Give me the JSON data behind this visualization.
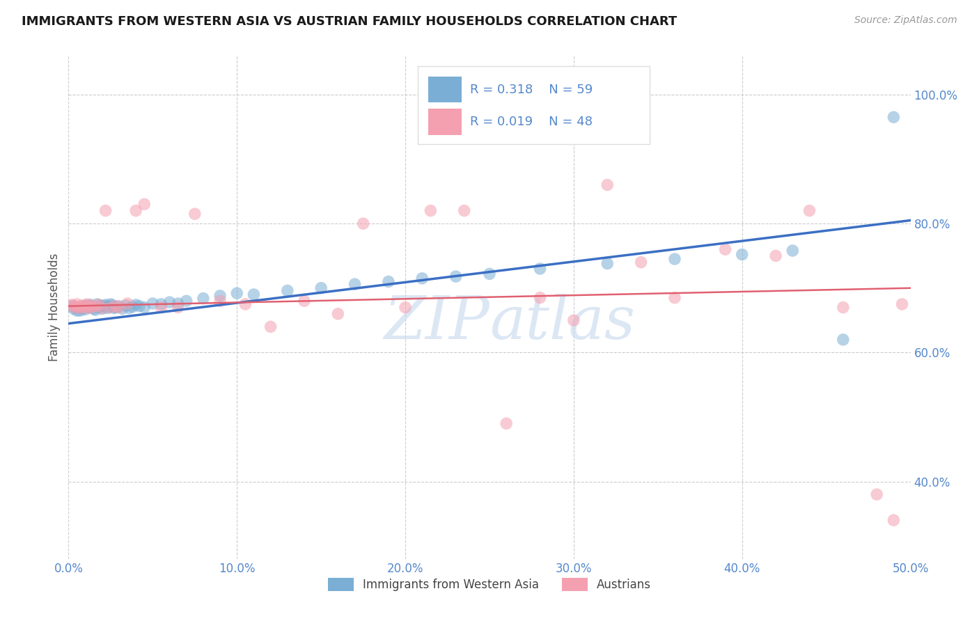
{
  "title": "IMMIGRANTS FROM WESTERN ASIA VS AUSTRIAN FAMILY HOUSEHOLDS CORRELATION CHART",
  "source_text": "Source: ZipAtlas.com",
  "ylabel": "Family Households",
  "xlim": [
    0.0,
    0.5
  ],
  "ylim": [
    0.28,
    1.06
  ],
  "xticks": [
    0.0,
    0.1,
    0.2,
    0.3,
    0.4,
    0.5
  ],
  "xtick_labels": [
    "0.0%",
    "10.0%",
    "20.0%",
    "30.0%",
    "40.0%",
    "50.0%"
  ],
  "yticks": [
    0.4,
    0.6,
    0.8,
    1.0
  ],
  "ytick_labels": [
    "40.0%",
    "60.0%",
    "80.0%",
    "100.0%"
  ],
  "blue_color": "#7BAED4",
  "pink_color": "#F4A0B0",
  "trend_blue": "#3B6FC4",
  "trend_pink": "#E06070",
  "title_color": "#1a1a1a",
  "axis_color": "#5588CC",
  "grid_color": "#CCCCCC",
  "blue_x": [
    0.002,
    0.003,
    0.004,
    0.005,
    0.006,
    0.007,
    0.008,
    0.009,
    0.01,
    0.01,
    0.011,
    0.012,
    0.013,
    0.014,
    0.015,
    0.016,
    0.017,
    0.018,
    0.019,
    0.02,
    0.021,
    0.022,
    0.023,
    0.024,
    0.025,
    0.026,
    0.027,
    0.028,
    0.03,
    0.032,
    0.034,
    0.036,
    0.038,
    0.04,
    0.042,
    0.045,
    0.05,
    0.055,
    0.06,
    0.065,
    0.07,
    0.08,
    0.09,
    0.1,
    0.11,
    0.13,
    0.15,
    0.17,
    0.19,
    0.21,
    0.23,
    0.25,
    0.28,
    0.32,
    0.36,
    0.4,
    0.43,
    0.46,
    0.49
  ],
  "blue_y": [
    0.672,
    0.668,
    0.67,
    0.665,
    0.67,
    0.665,
    0.668,
    0.671,
    0.673,
    0.667,
    0.672,
    0.67,
    0.674,
    0.671,
    0.668,
    0.666,
    0.675,
    0.67,
    0.673,
    0.668,
    0.672,
    0.674,
    0.669,
    0.671,
    0.675,
    0.673,
    0.669,
    0.67,
    0.672,
    0.668,
    0.673,
    0.669,
    0.671,
    0.674,
    0.672,
    0.67,
    0.676,
    0.675,
    0.678,
    0.676,
    0.68,
    0.684,
    0.688,
    0.692,
    0.69,
    0.696,
    0.7,
    0.706,
    0.71,
    0.715,
    0.718,
    0.722,
    0.73,
    0.738,
    0.745,
    0.752,
    0.758,
    0.62,
    0.965
  ],
  "pink_x": [
    0.002,
    0.003,
    0.004,
    0.005,
    0.006,
    0.007,
    0.008,
    0.009,
    0.01,
    0.011,
    0.012,
    0.013,
    0.014,
    0.016,
    0.018,
    0.02,
    0.022,
    0.025,
    0.028,
    0.03,
    0.035,
    0.04,
    0.045,
    0.055,
    0.065,
    0.075,
    0.09,
    0.105,
    0.12,
    0.14,
    0.16,
    0.175,
    0.2,
    0.215,
    0.235,
    0.26,
    0.28,
    0.3,
    0.32,
    0.34,
    0.36,
    0.39,
    0.42,
    0.44,
    0.46,
    0.48,
    0.49,
    0.495
  ],
  "pink_y": [
    0.674,
    0.672,
    0.67,
    0.675,
    0.671,
    0.669,
    0.673,
    0.67,
    0.672,
    0.675,
    0.669,
    0.673,
    0.671,
    0.672,
    0.674,
    0.669,
    0.82,
    0.67,
    0.672,
    0.67,
    0.676,
    0.82,
    0.83,
    0.67,
    0.67,
    0.815,
    0.68,
    0.675,
    0.64,
    0.68,
    0.66,
    0.8,
    0.67,
    0.82,
    0.82,
    0.49,
    0.685,
    0.65,
    0.86,
    0.74,
    0.685,
    0.76,
    0.75,
    0.82,
    0.67,
    0.38,
    0.34,
    0.675
  ],
  "watermark_color": "#C5D8EE"
}
